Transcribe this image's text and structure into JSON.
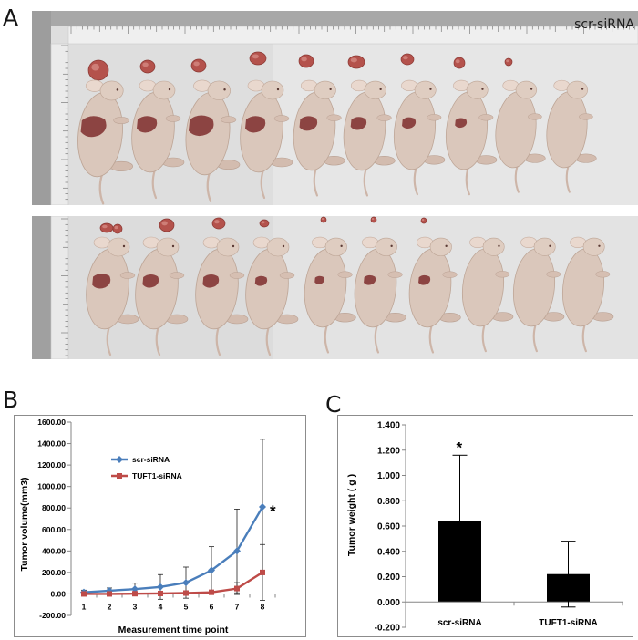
{
  "panels": {
    "a": "A",
    "b": "B",
    "c": "C"
  },
  "photo": {
    "group_label": "scr-siRNA"
  },
  "chart_data": [
    {
      "type": "line",
      "categories": [
        "1",
        "2",
        "3",
        "4",
        "5",
        "6",
        "7",
        "8"
      ],
      "series": [
        {
          "name": "scr-siRNA",
          "values": [
            15,
            30,
            45,
            65,
            105,
            220,
            400,
            810
          ],
          "error": [
            20,
            25,
            55,
            115,
            145,
            220,
            390,
            630
          ],
          "color": "#4a7ebb"
        },
        {
          "name": "TUFT1-siRNA",
          "values": [
            0,
            0,
            2,
            4,
            8,
            15,
            50,
            200
          ],
          "error": [
            0,
            0,
            3,
            6,
            10,
            20,
            55,
            260
          ],
          "color": "#be4b48"
        }
      ],
      "xlabel": "Measurement time point",
      "ylabel": "Tumor volume(mm3)",
      "ylim": [
        -200,
        1600
      ],
      "y_tick_values": [
        -200,
        0,
        200,
        400,
        600,
        800,
        1000,
        1200,
        1400,
        1600
      ],
      "y_tick_labels": [
        "-200.00",
        "0.00",
        "200.00",
        "400.00",
        "600.00",
        "800.00",
        "1000.00",
        "1200.00",
        "1400.00",
        "1600.00"
      ],
      "legend": "top-left",
      "annotation": {
        "text": "*",
        "at_category_index": 7
      }
    },
    {
      "type": "bar",
      "categories": [
        "scr-siRNA",
        "TUFT1-siRNA"
      ],
      "values": [
        0.64,
        0.22
      ],
      "error": [
        0.52,
        0.26
      ],
      "color": "#000000",
      "ylabel": "Tumor weight ( g )",
      "ylim": [
        -0.2,
        1.4
      ],
      "y_tick_values": [
        -0.2,
        0,
        0.2,
        0.4,
        0.6,
        0.8,
        1.0,
        1.2,
        1.4
      ],
      "y_tick_labels": [
        "-0.200",
        "0.000",
        "0.200",
        "0.400",
        "0.600",
        "0.800",
        "1.000",
        "1.200",
        "1.400"
      ],
      "annotation": {
        "text": "*",
        "at_category_index": 0
      }
    }
  ]
}
